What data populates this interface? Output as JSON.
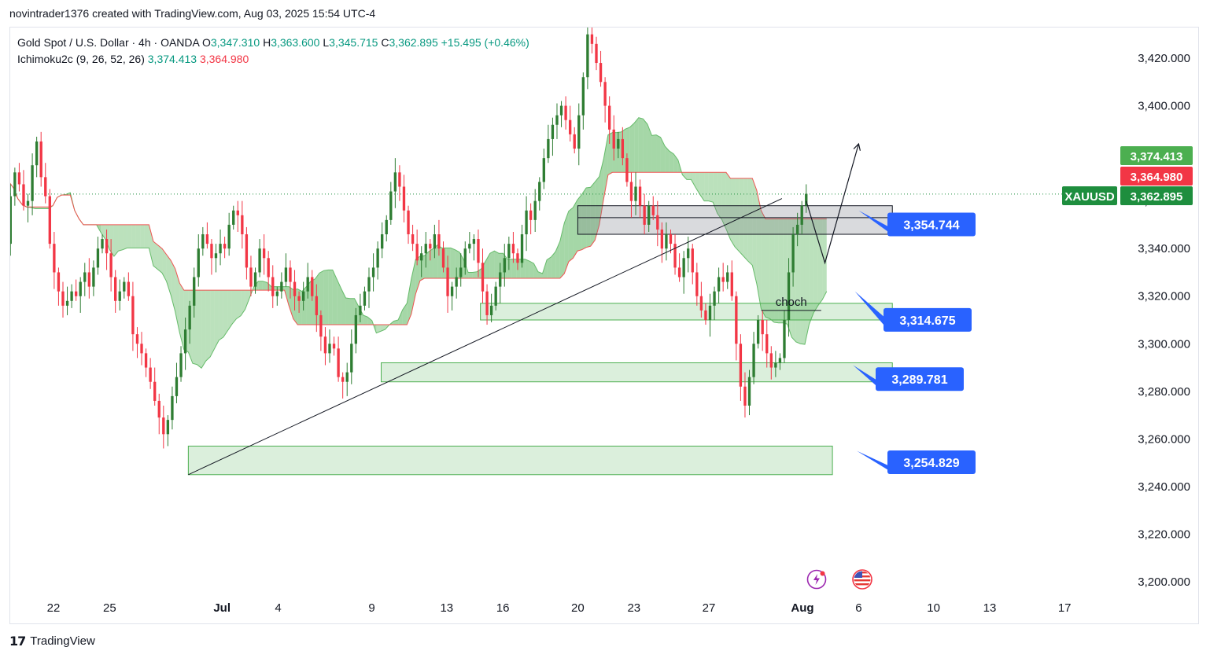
{
  "header": {
    "created_by": "novintrader1376 created with TradingView.com, Aug 03, 2025 15:54 UTC-4"
  },
  "legend": {
    "symbol": "Gold Spot / U.S. Dollar · 4h · OANDA",
    "o_label": "O",
    "o_value": "3,347.310",
    "h_label": "H",
    "h_value": "3,363.600",
    "l_label": "L",
    "l_value": "3,345.715",
    "c_label": "C",
    "c_value": "3,362.895",
    "change": "+15.495 (+0.46%)",
    "indicator": "Ichimoku2c (9, 26, 52, 26)",
    "ind_val1": "3,374.413",
    "ind_val2": "3,364.980"
  },
  "footer": {
    "brand": "TradingView",
    "logo_text": "17"
  },
  "chart_data": {
    "type": "candlestick",
    "symbol": "XAUUSD",
    "timeframe": "4h",
    "ylim": [
      3195,
      3437
    ],
    "y_ticks": [
      3200,
      3220,
      3240,
      3260,
      3280,
      3300,
      3320,
      3340,
      3360,
      3380,
      3400,
      3420
    ],
    "y_tick_labels": [
      "3,200.000",
      "3,220.000",
      "3,240.000",
      "3,260.000",
      "3,280.000",
      "3,300.000",
      "3,320.000",
      "3,340.000",
      "3,360.000",
      "3,380.000",
      "3,400.000",
      "3,420.000"
    ],
    "x_ticks": [
      {
        "label": "22",
        "day": 22
      },
      {
        "label": "25",
        "day": 25
      },
      {
        "label": "Jul",
        "day": 31
      },
      {
        "label": "4",
        "day": 34
      },
      {
        "label": "9",
        "day": 39
      },
      {
        "label": "13",
        "day": 43
      },
      {
        "label": "16",
        "day": 46
      },
      {
        "label": "20",
        "day": 50
      },
      {
        "label": "23",
        "day": 53
      },
      {
        "label": "27",
        "day": 57
      },
      {
        "label": "Aug",
        "day": 62
      },
      {
        "label": "6",
        "day": 65
      },
      {
        "label": "10",
        "day": 69
      },
      {
        "label": "13",
        "day": 72
      },
      {
        "label": "17",
        "day": 76
      }
    ],
    "x_tick_bold": [
      "Jul",
      "Aug"
    ],
    "last_price": 3362.895,
    "price_tags": [
      {
        "label": "3,374.413",
        "value": 3374.413,
        "color": "#4caf50"
      },
      {
        "label": "3,364.980",
        "value": 3364.98,
        "color": "#f23645"
      },
      {
        "label": "3,362.895",
        "value": 3362.895,
        "color": "#1e8e3e"
      }
    ],
    "symbol_tag": "XAUUSD",
    "up_color": "#2e7d32",
    "down_color": "#f23645",
    "cloud_color": "#4caf50",
    "zones": [
      {
        "day_from": 50.0,
        "day_to": 66.8,
        "low": 3346,
        "high": 3358,
        "color": "gray"
      },
      {
        "day_from": 44.8,
        "day_to": 66.8,
        "low": 3310,
        "high": 3317,
        "color": "green"
      },
      {
        "day_from": 39.5,
        "day_to": 66.8,
        "low": 3284,
        "high": 3292,
        "color": "green"
      },
      {
        "day_from": 29.2,
        "day_to": 63.6,
        "low": 3245,
        "high": 3257,
        "color": "green"
      }
    ],
    "zone_midline": {
      "value": 3353,
      "day_from": 50.0,
      "day_to": 66.8
    },
    "trendline": [
      {
        "day": 29.2,
        "value": 3245
      },
      {
        "day": 60.9,
        "value": 3361
      }
    ],
    "projection": [
      {
        "day": 62.2,
        "value": 3360
      },
      {
        "day": 63.2,
        "value": 3334
      },
      {
        "day": 65.0,
        "value": 3384
      }
    ],
    "choch": {
      "label": "choch",
      "value": 3314,
      "day_from": 59.8,
      "day_to": 63.0
    },
    "callouts": [
      {
        "label": "3,354.744",
        "value": 3354.744,
        "tail_value": 3356,
        "tail_day": 65.0
      },
      {
        "label": "3,314.675",
        "value": 3314.675,
        "tail_value": 3322,
        "tail_day": 64.8
      },
      {
        "label": "3,289.781",
        "value": 3289.781,
        "tail_value": 3291,
        "tail_day": 64.7
      },
      {
        "label": "3,254.829",
        "value": 3254.829,
        "tail_value": 3255,
        "tail_day": 64.9
      }
    ],
    "candles_close": [
      3374,
      3368,
      3370,
      3362,
      3365,
      3355,
      3345,
      3352,
      3342,
      3362,
      3372,
      3367,
      3358,
      3360,
      3375,
      3385,
      3370,
      3362,
      3342,
      3330,
      3322,
      3316,
      3318,
      3322,
      3320,
      3326,
      3330,
      3324,
      3332,
      3340,
      3344,
      3338,
      3328,
      3318,
      3322,
      3326,
      3320,
      3304,
      3300,
      3296,
      3290,
      3284,
      3276,
      3269,
      3262,
      3268,
      3278,
      3286,
      3296,
      3306,
      3316,
      3328,
      3340,
      3346,
      3342,
      3336,
      3338,
      3342,
      3340,
      3350,
      3356,
      3354,
      3346,
      3332,
      3324,
      3330,
      3340,
      3336,
      3328,
      3320,
      3322,
      3326,
      3332,
      3326,
      3320,
      3318,
      3322,
      3328,
      3320,
      3312,
      3303,
      3296,
      3300,
      3298,
      3286,
      3284,
      3288,
      3300,
      3312,
      3316,
      3322,
      3328,
      3332,
      3340,
      3346,
      3352,
      3364,
      3372,
      3366,
      3356,
      3346,
      3342,
      3335,
      3338,
      3342,
      3340,
      3346,
      3340,
      3332,
      3320,
      3324,
      3328,
      3332,
      3340,
      3342,
      3344,
      3334,
      3322,
      3312,
      3316,
      3324,
      3330,
      3336,
      3342,
      3338,
      3334,
      3346,
      3356,
      3352,
      3360,
      3368,
      3378,
      3386,
      3392,
      3396,
      3400,
      3394,
      3388,
      3382,
      3396,
      3412,
      3430,
      3426,
      3418,
      3410,
      3400,
      3390,
      3382,
      3386,
      3378,
      3368,
      3360,
      3366,
      3358,
      3350,
      3358,
      3354,
      3348,
      3340,
      3346,
      3342,
      3332,
      3328,
      3336,
      3340,
      3330,
      3320,
      3314,
      3310,
      3316,
      3322,
      3328,
      3326,
      3330,
      3320,
      3300,
      3282,
      3274,
      3286,
      3300,
      3310,
      3304,
      3296,
      3290,
      3292,
      3294,
      3310,
      3330,
      3346,
      3350,
      3358,
      3363
    ]
  }
}
